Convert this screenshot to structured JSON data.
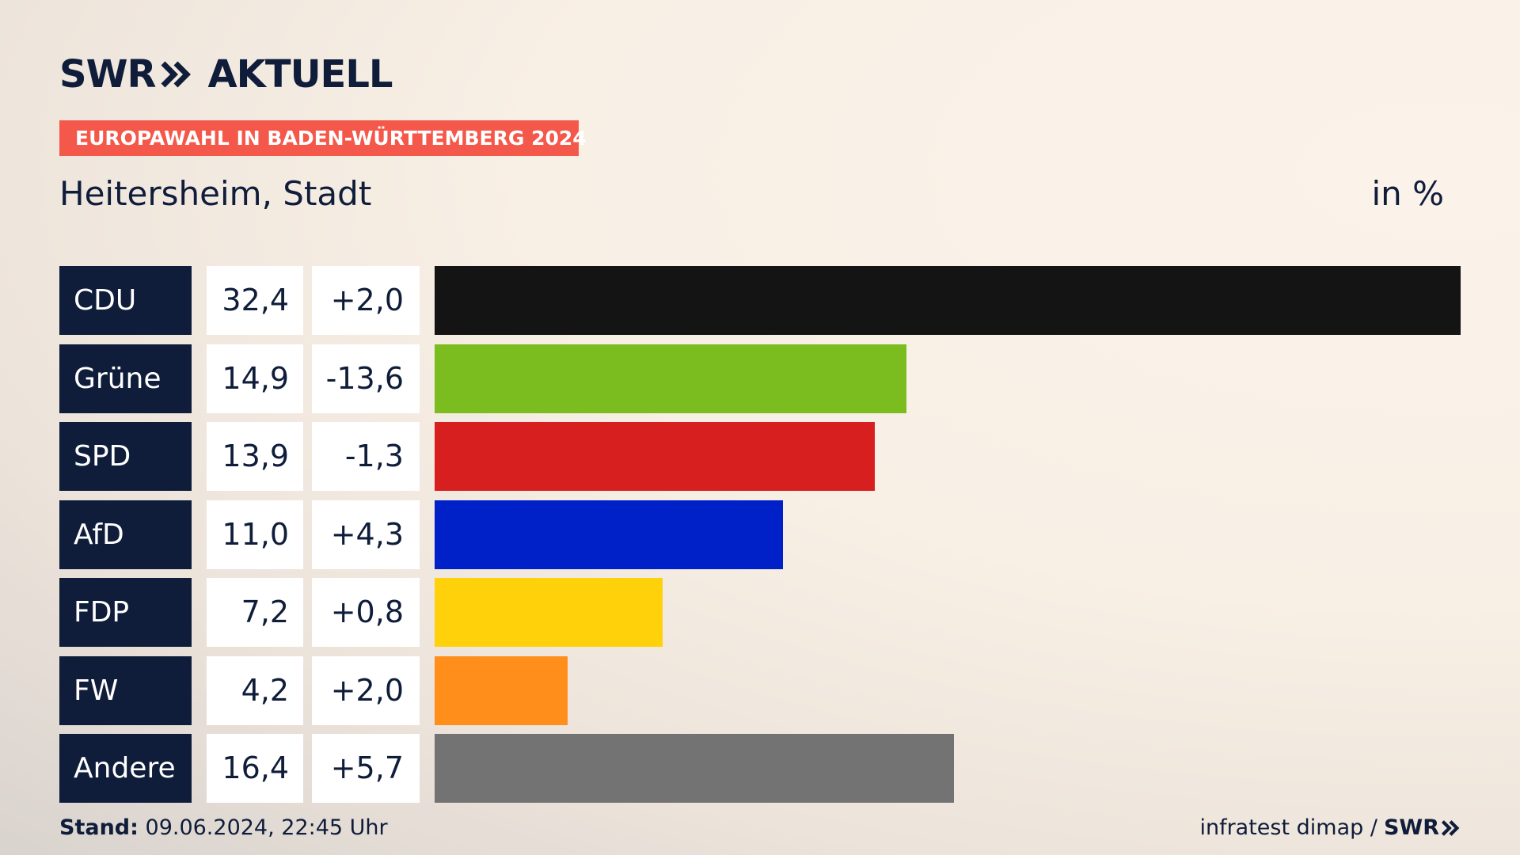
{
  "header": {
    "brand_left": "SWR",
    "brand_right": "AKTUELL",
    "banner": "EUROPAWAHL IN BADEN-WÜRTTEMBERG 2024",
    "subtitle": "Heitersheim, Stadt",
    "unit": "in %"
  },
  "footer": {
    "stand_label": "Stand:",
    "stand_value": "09.06.2024, 22:45 Uhr",
    "source": "infratest dimap /",
    "source_brand": "SWR"
  },
  "colors": {
    "navy": "#0f1d3a",
    "banner": "#f4584a"
  },
  "chart_data": {
    "type": "bar",
    "orientation": "horizontal",
    "title": "Heitersheim, Stadt",
    "unit": "in %",
    "categories": [
      "CDU",
      "Grüne",
      "SPD",
      "AfD",
      "FDP",
      "FW",
      "Andere"
    ],
    "values": [
      32.4,
      14.9,
      13.9,
      11.0,
      7.2,
      4.2,
      16.4
    ],
    "value_labels": [
      "32,4",
      "14,9",
      "13,9",
      "11,0",
      "7,2",
      "4,2",
      "16,4"
    ],
    "diff_labels": [
      "+2,0",
      "-13,6",
      "-1,3",
      "+4,3",
      "+0,8",
      "+2,0",
      "+5,7"
    ],
    "diffs": [
      2.0,
      -13.6,
      -1.3,
      4.3,
      0.8,
      2.0,
      5.7
    ],
    "colors": [
      "#141414",
      "#7bbd1f",
      "#d71f1f",
      "#0021c8",
      "#ffd10a",
      "#ff8f1a",
      "#737373"
    ],
    "xlim": [
      0,
      32.4
    ],
    "grid": false,
    "legend": "none"
  }
}
